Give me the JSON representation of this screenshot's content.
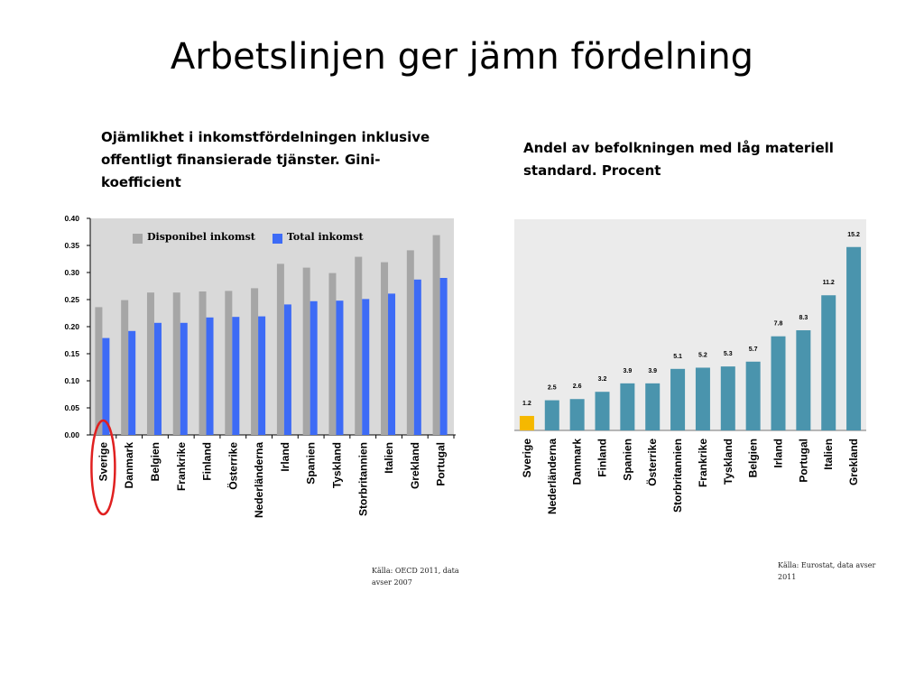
{
  "slide": {
    "title": "Arbetslinjen ger jämn fördelning"
  },
  "left_chart": {
    "heading": "Ojämlikhet i inkomstfördelningen inklusive offentligt finansierade tjänster. Gini-koefficient",
    "source": "Källa: OECD 2011, data avser 2007",
    "highlight": "Sverige"
  },
  "right_chart": {
    "heading": "Andel av befolkningen med låg materiell standard. Procent",
    "source": "Källa: Eurostat, data avser 2011"
  },
  "colors": {
    "left_background": "#d9d9d9",
    "disponibel": "#a6a6a6",
    "total": "#3d6bf6",
    "right_background": "#ebebeb",
    "right_bar": "#4a94ad",
    "right_highlight": "#f5b800",
    "highlight_ellipse": "#e02020"
  },
  "chart_data": [
    {
      "type": "bar",
      "categories": [
        "Sverige",
        "Danmark",
        "Belgien",
        "Frankrike",
        "Finland",
        "Österrike",
        "Nederländerna",
        "Irland",
        "Spanien",
        "Tyskland",
        "Storbritannien",
        "Italien",
        "Grekland",
        "Portugal"
      ],
      "series": [
        {
          "name": "Disponibel inkomst",
          "values": [
            0.236,
            0.249,
            0.263,
            0.263,
            0.265,
            0.266,
            0.271,
            0.316,
            0.309,
            0.299,
            0.329,
            0.319,
            0.341,
            0.369
          ]
        },
        {
          "name": "Total inkomst",
          "values": [
            0.179,
            0.192,
            0.207,
            0.207,
            0.217,
            0.218,
            0.219,
            0.241,
            0.247,
            0.248,
            0.251,
            0.261,
            0.287,
            0.29
          ]
        }
      ],
      "ylim": [
        0,
        0.4
      ],
      "yticks": [
        "0.00",
        "0.05",
        "0.10",
        "0.15",
        "0.20",
        "0.25",
        "0.30",
        "0.35",
        "0.40"
      ],
      "legend": "top-left",
      "grid": false
    },
    {
      "type": "bar",
      "categories": [
        "Sverige",
        "Nederländerna",
        "Danmark",
        "Finland",
        "Spanien",
        "Österrike",
        "Storbritannien",
        "Frankrike",
        "Tyskland",
        "Belgien",
        "Irland",
        "Portugal",
        "Italien",
        "Grekland"
      ],
      "values": [
        1.2,
        2.5,
        2.6,
        3.2,
        3.9,
        3.9,
        5.1,
        5.2,
        5.3,
        5.7,
        7.8,
        8.3,
        11.2,
        15.2
      ],
      "labels": [
        "1.2",
        "2.5",
        "2.6",
        "3.2",
        "3.9",
        "3.9",
        "5.1",
        "5.2",
        "5.3",
        "5.7",
        "7.8",
        "8.3",
        "11.2",
        "15.2"
      ],
      "ylim": [
        0,
        17.5
      ],
      "highlight": "Sverige",
      "grid": false
    }
  ]
}
